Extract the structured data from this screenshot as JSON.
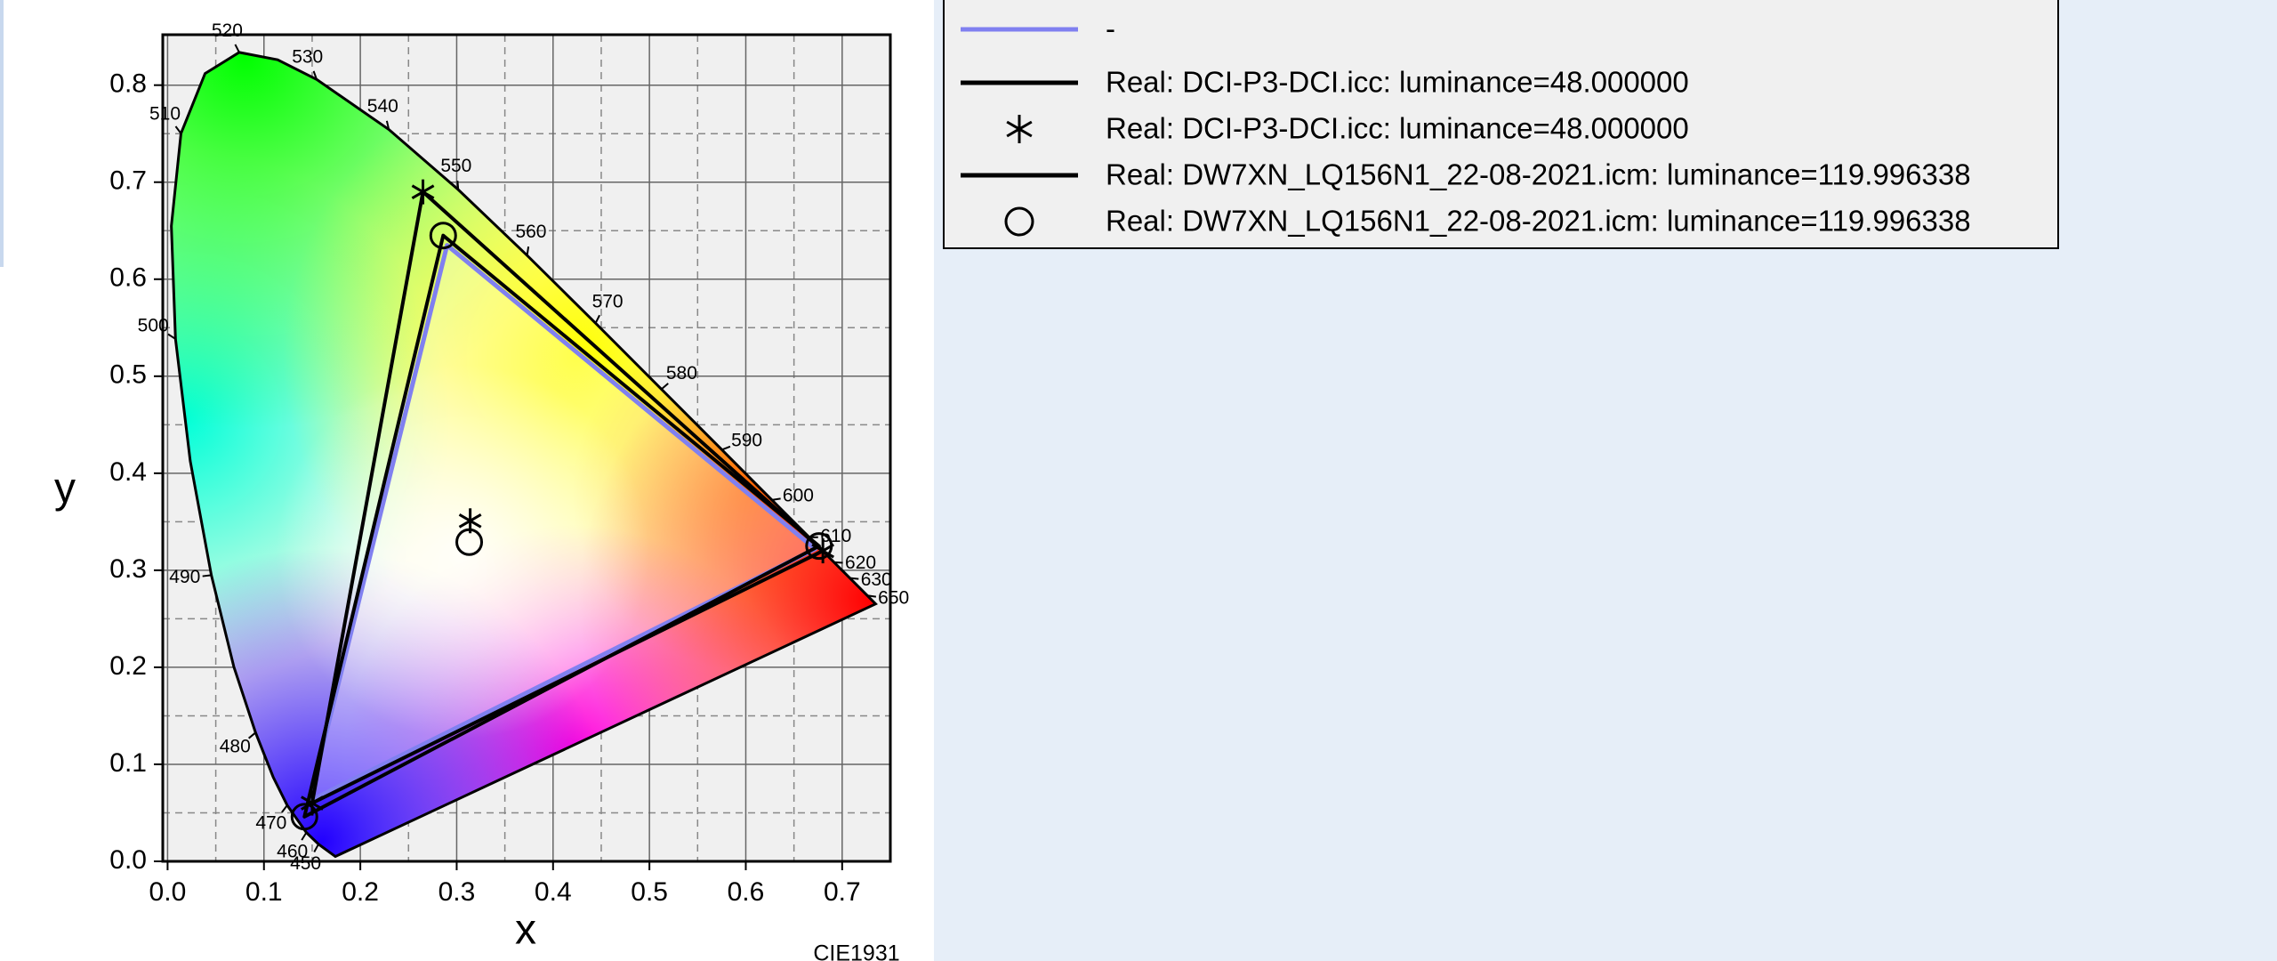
{
  "chart_data": {
    "type": "chromaticity",
    "xlabel": "x",
    "ylabel": "y",
    "annotation": "CIE1931",
    "xlim": [
      -0.005,
      0.75
    ],
    "ylim": [
      0,
      0.852
    ],
    "xticks": [
      {
        "value": 0,
        "label": "0.0"
      },
      0.1,
      0.2,
      0.3,
      0.4,
      0.5,
      0.6,
      0.7
    ],
    "yticks": [
      {
        "value": 0,
        "label": "0.0"
      },
      0.1,
      0.2,
      0.3,
      0.4,
      0.5,
      0.6,
      0.7,
      0.8
    ],
    "minor_xticks": [
      0.05,
      0.15,
      0.25,
      0.35,
      0.45,
      0.55,
      0.65
    ],
    "minor_yticks": [
      0.05,
      0.15,
      0.25,
      0.35,
      0.45,
      0.55,
      0.65,
      0.75
    ],
    "grid": true,
    "spectral_locus": {
      "x": [
        0.1741,
        0.1566,
        0.144,
        0.1241,
        0.1096,
        0.0913,
        0.0687,
        0.0454,
        0.0235,
        0.0082,
        0.0039,
        0.0139,
        0.0389,
        0.0743,
        0.1142,
        0.1547,
        0.2296,
        0.3016,
        0.3731,
        0.4441,
        0.5125,
        0.5752,
        0.627,
        0.6658,
        0.6915,
        0.7079,
        0.726,
        0.7347
      ],
      "y": [
        0.005,
        0.0177,
        0.0297,
        0.0578,
        0.0868,
        0.1327,
        0.2007,
        0.295,
        0.4127,
        0.5384,
        0.6548,
        0.7502,
        0.812,
        0.8338,
        0.8262,
        0.8059,
        0.7543,
        0.6923,
        0.6245,
        0.5547,
        0.4866,
        0.4242,
        0.3725,
        0.334,
        0.3083,
        0.292,
        0.274,
        0.2653
      ],
      "labels": [
        null,
        "450",
        "460",
        "470",
        null,
        "480",
        null,
        "490",
        null,
        "500",
        null,
        "510",
        null,
        "520",
        null,
        "530",
        "540",
        "550",
        "560",
        "570",
        "580",
        "590",
        "600",
        "610",
        "620",
        "630",
        "650",
        null
      ]
    },
    "series": [
      {
        "name": "-",
        "color": "#8080f0",
        "linestyle": "solid",
        "marker": null,
        "closed": true,
        "x": [
          0.29,
          0.672,
          0.147
        ],
        "y": [
          0.635,
          0.322,
          0.062
        ]
      },
      {
        "name": "Real: DCI-P3-DCI.icc: luminance=48.000000",
        "color": "#000000",
        "linestyle": "solid",
        "marker": null,
        "closed": true,
        "x": [
          0.265,
          0.68,
          0.15
        ],
        "y": [
          0.69,
          0.32,
          0.06
        ]
      },
      {
        "name": "Real: DCI-P3-DCI.icc: luminance=48.000000",
        "color": "#000000",
        "linestyle": null,
        "marker": "star",
        "closed": false,
        "x": [
          0.265,
          0.68,
          0.15,
          0.314
        ],
        "y": [
          0.69,
          0.32,
          0.06,
          0.351
        ]
      },
      {
        "name": "Real: DW7XN_LQ156N1_22-08-2021.icm: luminance=119.996338",
        "color": "#000000",
        "linestyle": "solid",
        "marker": null,
        "closed": true,
        "x": [
          0.286,
          0.676,
          0.142
        ],
        "y": [
          0.645,
          0.325,
          0.046
        ]
      },
      {
        "name": "Real: DW7XN_LQ156N1_22-08-2021.icm: luminance=119.996338",
        "color": "#000000",
        "linestyle": null,
        "marker": "circle",
        "closed": false,
        "x": [
          0.286,
          0.676,
          0.142,
          0.313
        ],
        "y": [
          0.645,
          0.325,
          0.046,
          0.329
        ]
      }
    ]
  }
}
